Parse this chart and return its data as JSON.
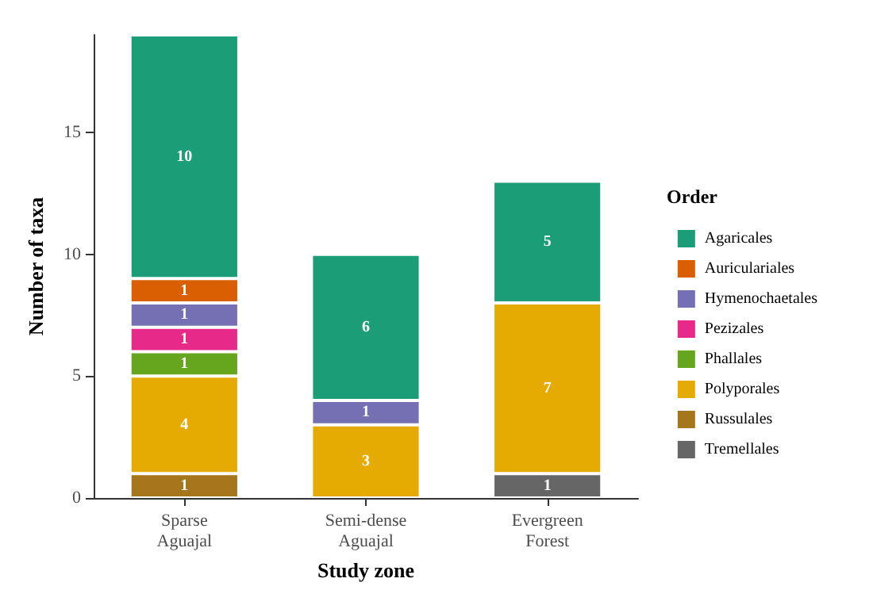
{
  "chart_data": {
    "type": "bar",
    "stacked": true,
    "xlabel": "Study zone",
    "ylabel": "Number of taxa",
    "legend_title": "Order",
    "legend": "right",
    "grid": false,
    "data_labels": true,
    "categories": [
      "Sparse\nAguajal",
      "Semi-dense\nAguajal",
      "Evergreen\nForest"
    ],
    "ylim": [
      0,
      19
    ],
    "yticks": [
      0,
      5,
      10,
      15
    ],
    "series": [
      {
        "name": "Tremellales",
        "color": "#666666",
        "values": [
          null,
          null,
          1
        ]
      },
      {
        "name": "Russulales",
        "color": "#a6761d",
        "values": [
          1,
          null,
          null
        ]
      },
      {
        "name": "Polyporales",
        "color": "#e6ab02",
        "values": [
          4,
          3,
          7
        ]
      },
      {
        "name": "Phallales",
        "color": "#66a61e",
        "values": [
          1,
          null,
          null
        ]
      },
      {
        "name": "Pezizales",
        "color": "#e7298a",
        "values": [
          1,
          null,
          null
        ]
      },
      {
        "name": "Hymenochaetales",
        "color": "#7570b3",
        "values": [
          1,
          1,
          null
        ]
      },
      {
        "name": "Auriculariales",
        "color": "#d95f02",
        "values": [
          1,
          null,
          null
        ]
      },
      {
        "name": "Agaricales",
        "color": "#1b9e77",
        "values": [
          10,
          6,
          5
        ]
      }
    ]
  }
}
